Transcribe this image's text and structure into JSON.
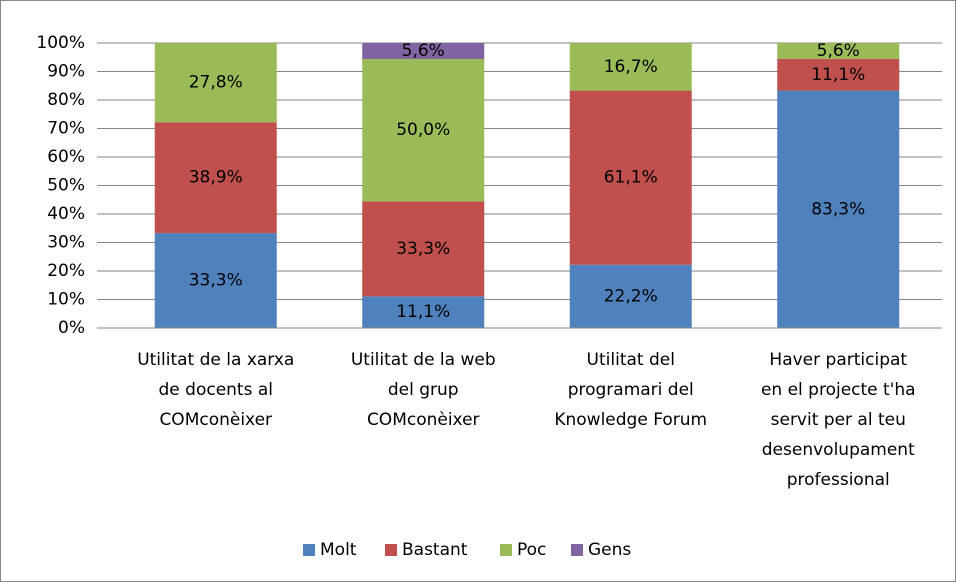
{
  "chart_data": {
    "type": "stacked_bar",
    "categories": [
      [
        "Utilitat de la xarxa",
        "de docents al",
        "COMconèixer"
      ],
      [
        "Utilitat de la web",
        "del grup",
        "COMconèixer"
      ],
      [
        "Utilitat del",
        "programari del",
        "Knowledge Forum"
      ],
      [
        "Haver participat",
        "en el projecte t'ha",
        "servit per al teu",
        "desenvolupament",
        "professional"
      ]
    ],
    "series": [
      {
        "name": "Molt",
        "color": "#4f81bd",
        "values": [
          33.3,
          11.1,
          22.2,
          83.3
        ],
        "value_labels": [
          "33,3%",
          "11,1%",
          "22,2%",
          "83,3%"
        ]
      },
      {
        "name": "Bastant",
        "color": "#c0504d",
        "values": [
          38.9,
          33.3,
          61.1,
          11.1
        ],
        "value_labels": [
          "38,9%",
          "33,3%",
          "61,1%",
          "11,1%"
        ]
      },
      {
        "name": "Poc",
        "color": "#9bbb59",
        "values": [
          27.8,
          50.0,
          16.7,
          5.6
        ],
        "value_labels": [
          "27,8%",
          "50,0%",
          "16,7%",
          "5,6%"
        ]
      },
      {
        "name": "Gens",
        "color": "#8064a2",
        "values": [
          null,
          5.6,
          null,
          null
        ],
        "value_labels": [
          null,
          "5,6%",
          null,
          null
        ]
      }
    ],
    "ylim": [
      0,
      100
    ],
    "yticks": [
      {
        "value": 0,
        "label": "0%"
      },
      {
        "value": 10,
        "label": "10%"
      },
      {
        "value": 20,
        "label": "20%"
      },
      {
        "value": 30,
        "label": "30%"
      },
      {
        "value": 40,
        "label": "40%"
      },
      {
        "value": 50,
        "label": "50%"
      },
      {
        "value": 60,
        "label": "60%"
      },
      {
        "value": 70,
        "label": "70%"
      },
      {
        "value": 80,
        "label": "80%"
      },
      {
        "value": 90,
        "label": "90%"
      },
      {
        "value": 100,
        "label": "100%"
      }
    ],
    "grid": true,
    "legend": "bottom"
  }
}
